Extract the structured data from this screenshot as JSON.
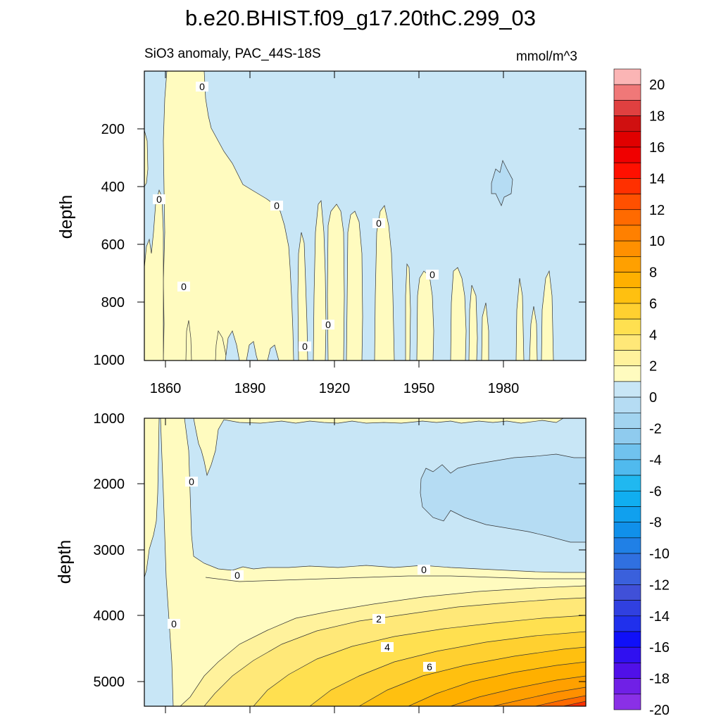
{
  "chart_data": {
    "type": "heatmap",
    "title": "b.e20.BHIST.f09_g17.20thC.299_03",
    "subtitle_left": "SiO3 anomaly, PAC_44S-18S",
    "subtitle_right": "mmol/m^3",
    "x_range": [
      1850,
      2005
    ],
    "x_ticks": [
      "1860",
      "1890",
      "1920",
      "1950",
      "1980"
    ],
    "panels": [
      {
        "name": "upper",
        "ylabel": "depth",
        "ylim": [
          0,
          1000
        ],
        "y_ticks": [
          "200",
          "400",
          "600",
          "800",
          "1000"
        ],
        "contour_labels": [
          "0",
          "0",
          "0",
          "0",
          "0",
          "0",
          "0",
          "0"
        ]
      },
      {
        "name": "lower",
        "ylabel": "depth",
        "ylim": [
          1000,
          5400
        ],
        "y_ticks": [
          "1000",
          "2000",
          "3000",
          "4000",
          "5000"
        ],
        "contour_labels": [
          "0",
          "0",
          "0",
          "0",
          "2",
          "4",
          "6"
        ]
      }
    ],
    "colorbar": {
      "labels": [
        "20",
        "18",
        "16",
        "14",
        "12",
        "10",
        "8",
        "6",
        "4",
        "2",
        "0",
        "-2",
        "-4",
        "-6",
        "-8",
        "-10",
        "-12",
        "-14",
        "-16",
        "-18",
        "-20"
      ],
      "colors": [
        "#fbb5b5",
        "#f07878",
        "#e04040",
        "#d01010",
        "#e00000",
        "#f00000",
        "#ff1000",
        "#ff3000",
        "#ff5000",
        "#ff6a00",
        "#ff8000",
        "#ff9000",
        "#ffa000",
        "#ffb000",
        "#ffc010",
        "#ffd030",
        "#ffe050",
        "#ffe878",
        "#fff29c",
        "#fffbbf",
        "#c8e6f6",
        "#b5dcf3",
        "#a2d4f0",
        "#8fcbee",
        "#70c2ee",
        "#50baee",
        "#20b8f0",
        "#10aef0",
        "#10a0ee",
        "#1090ea",
        "#2080e6",
        "#3070e0",
        "#3a60dc",
        "#4050d8",
        "#3040e0",
        "#2030ec",
        "#1010f8",
        "#3010f0",
        "#5010e8",
        "#7020e6",
        "#8a30e6"
      ]
    }
  }
}
